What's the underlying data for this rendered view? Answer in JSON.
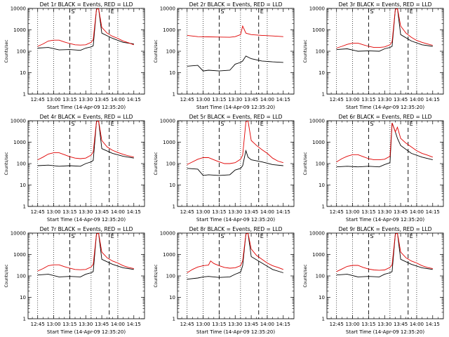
{
  "chart_data": [
    {
      "type": "line",
      "title": "Det 1r BLACK = Events, RED = LLD",
      "xlabel": "Start Time (14-Apr-09 12:35:20)",
      "ylabel": "Counts/sec",
      "yscale": "log",
      "ylim": [
        1,
        10000
      ],
      "x_ticks": [
        "12:45",
        "13:00",
        "13:15",
        "13:30",
        "13:45",
        "14:00",
        "14:15"
      ],
      "y_ticks": [
        "1",
        "10",
        "100",
        "1000",
        "10000"
      ],
      "markers": [
        "S",
        "E"
      ],
      "series": [
        {
          "color": "#000000",
          "x": [
            0,
            10,
            20,
            30,
            40,
            45,
            50,
            52,
            55,
            57,
            60,
            70,
            80,
            90
          ],
          "y": [
            140,
            150,
            115,
            120,
            110,
            140,
            160,
            180,
            9000,
            20000,
            700,
            400,
            260,
            220
          ]
        },
        {
          "color": "#e00000",
          "x": [
            0,
            5,
            10,
            15,
            20,
            25,
            30,
            35,
            40,
            45,
            50,
            52,
            55,
            57,
            60,
            65,
            70,
            75,
            80,
            85,
            90
          ],
          "y": [
            170,
            220,
            300,
            330,
            330,
            270,
            230,
            200,
            195,
            200,
            260,
            350,
            9000,
            20000,
            1300,
            700,
            500,
            400,
            300,
            250,
            200
          ]
        }
      ]
    },
    {
      "type": "line",
      "title": "Det 2r BLACK = Events, RED = LLD",
      "xlabel": "Start Time (14-Apr-09 12:35:20)",
      "ylabel": "Counts/sec",
      "yscale": "log",
      "ylim": [
        1,
        10000
      ],
      "x_ticks": [
        "12:45",
        "13:00",
        "13:15",
        "13:30",
        "13:45",
        "14:00",
        "14:15"
      ],
      "y_ticks": [
        "1",
        "10",
        "100",
        "1000",
        "10000"
      ],
      "markers": [
        "S",
        "E"
      ],
      "series": [
        {
          "color": "#000000",
          "x": [
            0,
            10,
            15,
            20,
            30,
            40,
            45,
            50,
            52,
            55,
            60,
            70,
            80,
            90
          ],
          "y": [
            20,
            22,
            12,
            13,
            12,
            13,
            25,
            30,
            35,
            60,
            45,
            35,
            32,
            30
          ]
        },
        {
          "color": "#e00000",
          "x": [
            0,
            10,
            20,
            30,
            40,
            45,
            50,
            52,
            55,
            60,
            70,
            80,
            90
          ],
          "y": [
            550,
            480,
            470,
            460,
            450,
            480,
            600,
            1500,
            700,
            600,
            550,
            520,
            480
          ]
        }
      ]
    },
    {
      "type": "line",
      "title": "Det 3r BLACK = Events, RED = LLD",
      "xlabel": "Start Time (14-Apr-09 12:35:20)",
      "ylabel": "Counts/sec",
      "yscale": "log",
      "ylim": [
        1,
        10000
      ],
      "x_ticks": [
        "12:45",
        "13:00",
        "13:15",
        "13:30",
        "13:45",
        "14:00",
        "14:15"
      ],
      "y_ticks": [
        "1",
        "10",
        "100",
        "1000",
        "10000"
      ],
      "markers": [
        "S",
        "E"
      ],
      "series": [
        {
          "color": "#000000",
          "x": [
            0,
            10,
            20,
            30,
            40,
            45,
            50,
            52,
            55,
            57,
            60,
            70,
            80,
            90
          ],
          "y": [
            120,
            130,
            100,
            105,
            100,
            130,
            150,
            170,
            9000,
            20000,
            600,
            300,
            200,
            170
          ]
        },
        {
          "color": "#e00000",
          "x": [
            0,
            5,
            10,
            15,
            20,
            25,
            30,
            35,
            40,
            45,
            50,
            52,
            55,
            57,
            60,
            65,
            70,
            75,
            80,
            85,
            90
          ],
          "y": [
            140,
            170,
            210,
            240,
            240,
            200,
            170,
            150,
            150,
            160,
            200,
            280,
            9000,
            20000,
            1500,
            700,
            450,
            320,
            260,
            220,
            190
          ]
        }
      ]
    },
    {
      "type": "line",
      "title": "Det 4r BLACK = Events, RED = LLD",
      "xlabel": "Start Time (14-Apr-09 12:35:20)",
      "ylabel": "Counts/sec",
      "yscale": "log",
      "ylim": [
        1,
        10000
      ],
      "x_ticks": [
        "12:45",
        "13:00",
        "13:15",
        "13:30",
        "13:45",
        "14:00",
        "14:15"
      ],
      "y_ticks": [
        "1",
        "10",
        "100",
        "1000",
        "10000"
      ],
      "markers": [
        "S",
        "E"
      ],
      "series": [
        {
          "color": "#000000",
          "x": [
            0,
            10,
            20,
            30,
            40,
            45,
            50,
            52,
            55,
            57,
            60,
            70,
            80,
            90
          ],
          "y": [
            80,
            85,
            75,
            80,
            75,
            100,
            120,
            140,
            9000,
            20000,
            500,
            300,
            220,
            180
          ]
        },
        {
          "color": "#e00000",
          "x": [
            0,
            5,
            10,
            15,
            20,
            25,
            30,
            35,
            40,
            45,
            50,
            52,
            55,
            57,
            60,
            65,
            70,
            75,
            80,
            85,
            90
          ],
          "y": [
            150,
            200,
            280,
            320,
            320,
            260,
            210,
            180,
            170,
            180,
            250,
            350,
            9000,
            20000,
            1200,
            600,
            420,
            330,
            270,
            230,
            200
          ]
        }
      ]
    },
    {
      "type": "line",
      "title": "Det 5r BLACK = Events, RED = LLD",
      "xlabel": "Start Time (14-Apr-09 12:35:20)",
      "ylabel": "Counts/sec",
      "yscale": "log",
      "ylim": [
        1,
        10000
      ],
      "x_ticks": [
        "12:45",
        "13:00",
        "13:15",
        "13:30",
        "13:45",
        "14:00",
        "14:15"
      ],
      "y_ticks": [
        "1",
        "10",
        "100",
        "1000",
        "10000"
      ],
      "markers": [
        "S",
        "E"
      ],
      "series": [
        {
          "color": "#000000",
          "x": [
            0,
            10,
            15,
            20,
            30,
            40,
            45,
            50,
            52,
            55,
            57,
            60,
            70,
            80,
            90
          ],
          "y": [
            60,
            55,
            28,
            30,
            28,
            30,
            50,
            60,
            80,
            400,
            200,
            150,
            120,
            90,
            80
          ]
        },
        {
          "color": "#e00000",
          "x": [
            0,
            5,
            10,
            15,
            20,
            25,
            30,
            35,
            40,
            45,
            50,
            52,
            55,
            57,
            60,
            65,
            70,
            75,
            80,
            85,
            90
          ],
          "y": [
            90,
            120,
            160,
            190,
            190,
            150,
            120,
            100,
            100,
            110,
            160,
            250,
            9000,
            20000,
            1200,
            700,
            450,
            300,
            180,
            130,
            110
          ]
        }
      ]
    },
    {
      "type": "line",
      "title": "Det 6r BLACK = Events, RED = LLD",
      "xlabel": "Start Time (14-Apr-09 12:35:20)",
      "ylabel": "Counts/sec",
      "yscale": "log",
      "ylim": [
        1,
        10000
      ],
      "x_ticks": [
        "12:45",
        "13:00",
        "13:15",
        "13:30",
        "13:45",
        "14:00",
        "14:15"
      ],
      "y_ticks": [
        "1",
        "10",
        "100",
        "1000",
        "10000"
      ],
      "markers": [
        "S",
        "E"
      ],
      "series": [
        {
          "color": "#000000",
          "x": [
            0,
            10,
            20,
            30,
            40,
            45,
            50,
            52,
            55,
            57,
            60,
            70,
            80,
            90
          ],
          "y": [
            70,
            75,
            70,
            75,
            70,
            90,
            110,
            8000,
            3000,
            1500,
            700,
            300,
            200,
            150
          ]
        },
        {
          "color": "#e00000",
          "x": [
            0,
            5,
            10,
            15,
            20,
            25,
            30,
            35,
            40,
            45,
            50,
            52,
            55,
            57,
            60,
            65,
            70,
            75,
            80,
            85,
            90
          ],
          "y": [
            120,
            170,
            220,
            260,
            260,
            210,
            170,
            150,
            150,
            160,
            220,
            8000,
            3000,
            5000,
            1500,
            900,
            600,
            400,
            300,
            250,
            200
          ]
        }
      ]
    },
    {
      "type": "line",
      "title": "Det 7r BLACK = Events, RED = LLD",
      "xlabel": "Start Time (14-Apr-09 12:35:20)",
      "ylabel": "Counts/sec",
      "yscale": "log",
      "ylim": [
        1,
        10000
      ],
      "x_ticks": [
        "12:45",
        "13:00",
        "13:15",
        "13:30",
        "13:45",
        "14:00",
        "14:15"
      ],
      "y_ticks": [
        "1",
        "10",
        "100",
        "1000",
        "10000"
      ],
      "markers": [
        "S",
        "E"
      ],
      "series": [
        {
          "color": "#000000",
          "x": [
            0,
            10,
            20,
            30,
            40,
            45,
            50,
            52,
            55,
            57,
            60,
            70,
            80,
            90
          ],
          "y": [
            110,
            120,
            90,
            95,
            90,
            120,
            140,
            160,
            9000,
            20000,
            600,
            350,
            240,
            200
          ]
        },
        {
          "color": "#e00000",
          "x": [
            0,
            5,
            10,
            15,
            20,
            25,
            30,
            35,
            40,
            45,
            50,
            52,
            55,
            57,
            60,
            65,
            70,
            75,
            80,
            85,
            90
          ],
          "y": [
            170,
            220,
            300,
            330,
            330,
            270,
            230,
            200,
            195,
            200,
            260,
            350,
            9000,
            20000,
            1300,
            700,
            500,
            400,
            300,
            250,
            220
          ]
        }
      ]
    },
    {
      "type": "line",
      "title": "Det 8r BLACK = Events, RED = LLD",
      "xlabel": "Start Time (14-Apr-09 12:35:20)",
      "ylabel": "Counts/sec",
      "yscale": "log",
      "ylim": [
        1,
        10000
      ],
      "x_ticks": [
        "12:45",
        "13:00",
        "13:15",
        "13:30",
        "13:45",
        "14:00",
        "14:15"
      ],
      "y_ticks": [
        "1",
        "10",
        "100",
        "1000",
        "10000"
      ],
      "markers": [
        "S",
        "E"
      ],
      "series": [
        {
          "color": "#000000",
          "x": [
            0,
            10,
            15,
            20,
            30,
            40,
            45,
            50,
            52,
            55,
            57,
            60,
            70,
            80,
            90
          ],
          "y": [
            70,
            80,
            90,
            95,
            85,
            90,
            120,
            150,
            300,
            9000,
            20000,
            800,
            400,
            200,
            140
          ]
        },
        {
          "color": "#e00000",
          "x": [
            0,
            5,
            10,
            15,
            20,
            22,
            25,
            30,
            35,
            40,
            45,
            50,
            52,
            55,
            57,
            60,
            65,
            70,
            75,
            80,
            85,
            90
          ],
          "y": [
            140,
            200,
            260,
            300,
            320,
            500,
            380,
            300,
            250,
            230,
            240,
            300,
            500,
            9000,
            20000,
            1800,
            900,
            600,
            400,
            300,
            250,
            200
          ]
        }
      ]
    },
    {
      "type": "line",
      "title": "Det 9r BLACK = Events, RED = LLD",
      "xlabel": "Start Time (14-Apr-09 12:35:20)",
      "ylabel": "Counts/sec",
      "yscale": "log",
      "ylim": [
        1,
        10000
      ],
      "x_ticks": [
        "12:45",
        "13:00",
        "13:15",
        "13:30",
        "13:45",
        "14:00",
        "14:15"
      ],
      "y_ticks": [
        "1",
        "10",
        "100",
        "1000",
        "10000"
      ],
      "markers": [
        "S",
        "E"
      ],
      "series": [
        {
          "color": "#000000",
          "x": [
            0,
            10,
            20,
            30,
            40,
            45,
            50,
            52,
            55,
            57,
            60,
            70,
            80,
            90
          ],
          "y": [
            110,
            120,
            90,
            95,
            90,
            120,
            140,
            160,
            9000,
            20000,
            600,
            350,
            240,
            200
          ]
        },
        {
          "color": "#e00000",
          "x": [
            0,
            5,
            10,
            15,
            20,
            25,
            30,
            35,
            40,
            45,
            50,
            52,
            55,
            57,
            60,
            65,
            70,
            75,
            80,
            85,
            90
          ],
          "y": [
            160,
            210,
            280,
            310,
            310,
            250,
            210,
            190,
            185,
            190,
            250,
            330,
            9000,
            20000,
            1300,
            700,
            500,
            400,
            300,
            250,
            220
          ]
        }
      ]
    }
  ]
}
